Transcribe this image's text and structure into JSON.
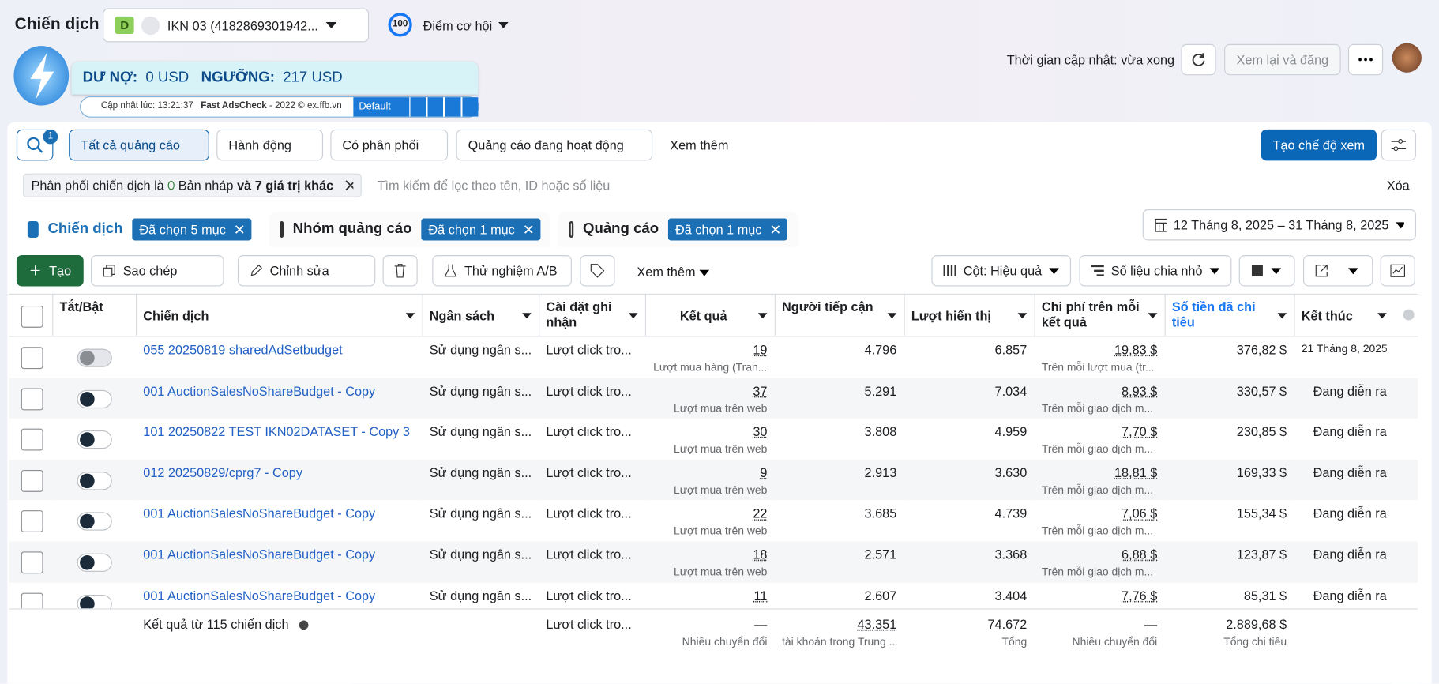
{
  "header": {
    "title": "Chiến dịch",
    "account_badge": "D",
    "account": "IKN 03 (4182869301942...",
    "score": "100",
    "opportunity": "Điểm cơ hội",
    "update_time": "Thời gian cập nhật: vừa xong",
    "review_button": "Xem lại và đăng"
  },
  "extension": {
    "debt_label": "DƯ NỢ:",
    "debt_value": "0 USD",
    "threshold_label": "NGƯỠNG:",
    "threshold_value": "217 USD",
    "updated": "Cập nhật lúc: 13:21:37 |",
    "brand": "Fast AdsCheck",
    "copyright": "- 2022 © ex.ffb.vn",
    "preset": "Default"
  },
  "toolbar": {
    "search_badge": "1",
    "filters": [
      "Tất cả quảng cáo",
      "Hành động",
      "Có phân phối",
      "Quảng cáo đang hoạt động",
      "Xem thêm"
    ],
    "create_view": "Tạo chế độ xem"
  },
  "filter_bar": {
    "chip_prefix": "Phân phối chiến dịch là",
    "chip_value": "Bản nháp",
    "chip_more": "và 7 giá trị khác",
    "search_placeholder": "Tìm kiếm để lọc theo tên, ID hoặc số liệu",
    "clear": "Xóa"
  },
  "tabs": [
    {
      "label": "Chiến dịch",
      "selection": "Đã chọn 5 mục"
    },
    {
      "label": "Nhóm quảng cáo",
      "selection": "Đã chọn 1 mục"
    },
    {
      "label": "Quảng cáo",
      "selection": "Đã chọn 1 mục"
    }
  ],
  "date_range": "12 Tháng 8, 2025 – 31 Tháng 8, 2025",
  "actions": {
    "create": "Tạo",
    "copy": "Sao chép",
    "edit": "Chỉnh sửa",
    "ab_test": "Thử nghiệm A/B",
    "more": "Xem thêm",
    "columns": "Cột: Hiệu quả",
    "breakdown": "Số liệu chia nhỏ"
  },
  "table": {
    "columns": [
      "Tắt/Bật",
      "Chiến dịch",
      "Ngân sách",
      "Cài đặt ghi nhận",
      "Kết quả",
      "Người tiếp cận",
      "Lượt hiển thị",
      "Chi phí trên mỗi kết quả",
      "Số tiền đã chi tiêu",
      "Kết thúc"
    ],
    "rows": [
      {
        "enabled": false,
        "name": "055 20250819 sharedAdSetbudget",
        "budget": "Sử dụng ngân s...",
        "setting": "Lượt click tro...",
        "result": "19",
        "result_label": "Lượt mua hàng (Tran...",
        "reach": "4.796",
        "impressions": "6.857",
        "cost": "19,83 $",
        "cost_label": "Trên mỗi lượt mua (tr...",
        "spent": "376,82 $",
        "end": "21 Tháng 8, 2025"
      },
      {
        "enabled": true,
        "name": "001 AuctionSalesNoShareBudget - Copy",
        "budget": "Sử dụng ngân s...",
        "setting": "Lượt click tro...",
        "result": "37",
        "result_label": "Lượt mua trên web",
        "reach": "5.291",
        "impressions": "7.034",
        "cost": "8,93 $",
        "cost_label": "Trên mỗi giao dịch m...",
        "spent": "330,57 $",
        "end": "Đang diễn ra"
      },
      {
        "enabled": true,
        "name": "101 20250822 TEST IKN02DATASET - Copy 3",
        "budget": "Sử dụng ngân s...",
        "setting": "Lượt click tro...",
        "result": "30",
        "result_label": "Lượt mua trên web",
        "reach": "3.808",
        "impressions": "4.959",
        "cost": "7,70 $",
        "cost_label": "Trên mỗi giao dịch m...",
        "spent": "230,85 $",
        "end": "Đang diễn ra"
      },
      {
        "enabled": true,
        "name": "012 20250829/cprg7 - Copy",
        "budget": "Sử dụng ngân s...",
        "setting": "Lượt click tro...",
        "result": "9",
        "result_label": "Lượt mua trên web",
        "reach": "2.913",
        "impressions": "3.630",
        "cost": "18,81 $",
        "cost_label": "Trên mỗi giao dịch m...",
        "spent": "169,33 $",
        "end": "Đang diễn ra"
      },
      {
        "enabled": true,
        "name": "001 AuctionSalesNoShareBudget - Copy",
        "budget": "Sử dụng ngân s...",
        "setting": "Lượt click tro...",
        "result": "22",
        "result_label": "Lượt mua trên web",
        "reach": "3.685",
        "impressions": "4.739",
        "cost": "7,06 $",
        "cost_label": "Trên mỗi giao dịch m...",
        "spent": "155,34 $",
        "end": "Đang diễn ra"
      },
      {
        "enabled": true,
        "name": "001 AuctionSalesNoShareBudget - Copy",
        "budget": "Sử dụng ngân s...",
        "setting": "Lượt click tro...",
        "result": "18",
        "result_label": "Lượt mua trên web",
        "reach": "2.571",
        "impressions": "3.368",
        "cost": "6,88 $",
        "cost_label": "Trên mỗi giao dịch m...",
        "spent": "123,87 $",
        "end": "Đang diễn ra"
      },
      {
        "enabled": true,
        "name": "001 AuctionSalesNoShareBudget - Copy",
        "budget": "Sử dụng ngân s...",
        "setting": "Lượt click tro...",
        "result": "11",
        "reach": "2.607",
        "impressions": "3.404",
        "cost": "7,76 $",
        "spent": "85,31 $",
        "end": "Đang diễn ra"
      }
    ],
    "footer": {
      "label": "Kết quả từ 115 chiến dịch",
      "setting": "Lượt click tro...",
      "result": "—",
      "result_label": "Nhiều chuyển đổi",
      "reach": "43.351",
      "reach_label": "tài khoản trong Trung ...",
      "impressions": "74.672",
      "impressions_label": "Tổng",
      "cost": "—",
      "cost_label": "Nhiều chuyển đổi",
      "spent": "2.889,68 $",
      "spent_label": "Tổng chi tiêu"
    }
  }
}
